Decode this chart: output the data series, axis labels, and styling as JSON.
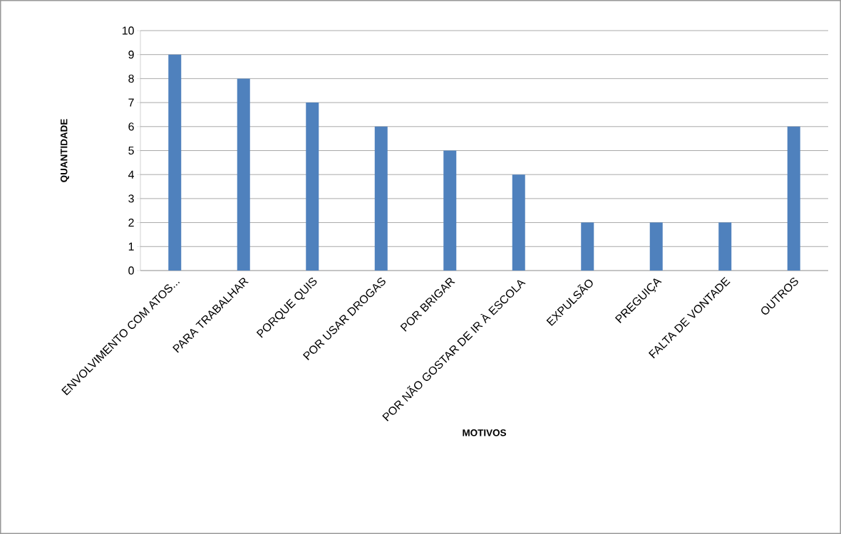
{
  "chart_data": {
    "type": "bar",
    "xlabel": "MOTIVOS",
    "ylabel": "QUANTIDADE",
    "categories": [
      "ENVOLVIMENTO COM ATOS...",
      "PARA TRABALHAR",
      "PORQUE QUIS",
      "POR USAR DROGAS",
      "POR BRIGAR",
      "POR NÃO GOSTAR DE IR À ESCOLA",
      "EXPULSÃO",
      "PREGUIÇA",
      "FALTA DE VONTADE",
      "OUTROS"
    ],
    "values": [
      9,
      8,
      7,
      6,
      5,
      4,
      2,
      2,
      2,
      6
    ],
    "color": "#4f81bd",
    "ylim": [
      0,
      10
    ],
    "yticks": [
      0,
      1,
      2,
      3,
      4,
      5,
      6,
      7,
      8,
      9,
      10
    ],
    "grid": "y"
  }
}
